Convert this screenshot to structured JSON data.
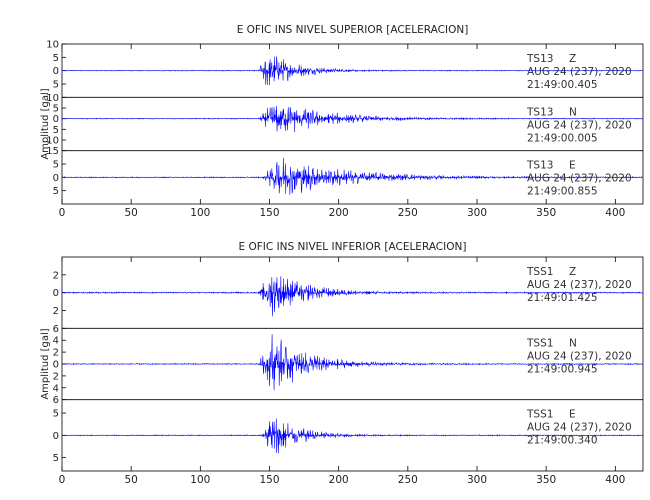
{
  "chart_data": [
    {
      "type": "line",
      "title": "E OFIC INS NIVEL SUPERIOR [ACELERACION]",
      "ylabel": "Amplitud [gal]",
      "xlabel": "",
      "xlim": [
        0,
        420
      ],
      "x_ticks": [
        0,
        50,
        100,
        150,
        200,
        250,
        300,
        350,
        400
      ],
      "line_color": "#0000ff",
      "grid": false,
      "traces": [
        {
          "station": "TS13",
          "component": "Z",
          "date": "AUG 24 (237), 2020",
          "time": "21:49:00.405",
          "ylim": [
            -10,
            10
          ],
          "y_ticks": [
            10,
            5,
            0,
            -5
          ],
          "y_tick_labels": [
            "10",
            "5",
            "0",
            "5"
          ],
          "envelope": {
            "onset": 142,
            "peak_time": 148,
            "peak_amplitude": 8.0,
            "decay": 20,
            "noise": 0.15
          }
        },
        {
          "station": "TS13",
          "component": "N",
          "date": "AUG 24 (237), 2020",
          "time": "21:49:00.005",
          "ylim": [
            -15,
            10
          ],
          "y_ticks": [
            10,
            5,
            0,
            -5,
            -10,
            -15
          ],
          "y_tick_labels": [
            "10",
            "5",
            "0",
            "5",
            "10",
            "15"
          ],
          "envelope": {
            "onset": 142,
            "peak_time": 155,
            "peak_amplitude": 9.5,
            "decay": 35,
            "noise": 0.2
          }
        },
        {
          "station": "TS13",
          "component": "E",
          "date": "AUG 24 (237), 2020",
          "time": "21:49:00.855",
          "ylim": [
            -10,
            10
          ],
          "y_ticks": [
            5,
            0,
            -5
          ],
          "y_tick_labels": [
            "5",
            "0",
            "5"
          ],
          "envelope": {
            "onset": 145,
            "peak_time": 158,
            "peak_amplitude": 8.5,
            "decay": 45,
            "noise": 0.2
          }
        }
      ]
    },
    {
      "type": "line",
      "title": "E OFIC INS NIVEL INFERIOR [ACELERACION]",
      "ylabel": "Amplitud [gal]",
      "xlabel": "",
      "xlim": [
        0,
        420
      ],
      "x_ticks": [
        0,
        50,
        100,
        150,
        200,
        250,
        300,
        350,
        400
      ],
      "line_color": "#0000ff",
      "grid": false,
      "traces": [
        {
          "station": "TSS1",
          "component": "Z",
          "date": "AUG 24 (237), 2020",
          "time": "21:49:01.425",
          "ylim": [
            -4,
            4
          ],
          "y_ticks": [
            2,
            0,
            -2
          ],
          "y_tick_labels": [
            "2",
            "0",
            "2"
          ],
          "envelope": {
            "onset": 142,
            "peak_time": 152,
            "peak_amplitude": 3.2,
            "decay": 22,
            "noise": 0.08
          }
        },
        {
          "station": "TSS1",
          "component": "N",
          "date": "AUG 24 (237), 2020",
          "time": "21:49:00.945",
          "ylim": [
            -6,
            6
          ],
          "y_ticks": [
            6,
            4,
            2,
            0,
            -2,
            -4,
            -6
          ],
          "y_tick_labels": [
            "6",
            "4",
            "2",
            "0",
            "2",
            "4",
            "6"
          ],
          "envelope": {
            "onset": 142,
            "peak_time": 152,
            "peak_amplitude": 5.5,
            "decay": 25,
            "noise": 0.1
          }
        },
        {
          "station": "TSS1",
          "component": "E",
          "date": "AUG 24 (237), 2020",
          "time": "21:49:00.340",
          "ylim": [
            -8,
            8
          ],
          "y_ticks": [
            5,
            0,
            -5
          ],
          "y_tick_labels": [
            "5",
            "0",
            "5"
          ],
          "envelope": {
            "onset": 145,
            "peak_time": 152,
            "peak_amplitude": 6.0,
            "decay": 18,
            "noise": 0.12
          }
        }
      ]
    }
  ]
}
